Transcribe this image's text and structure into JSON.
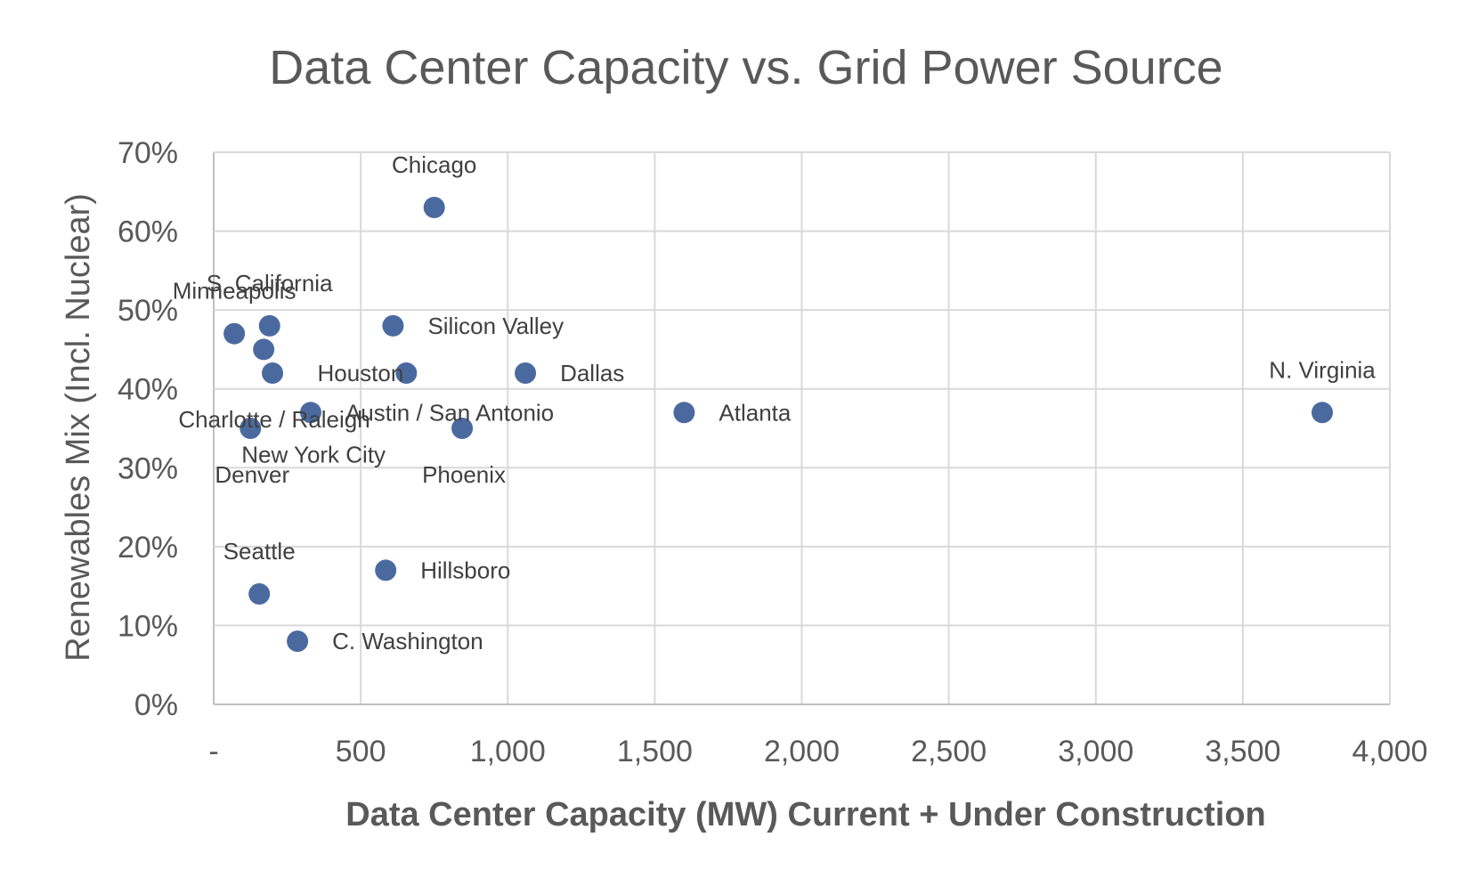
{
  "chart_data": {
    "type": "scatter",
    "title": "Data Center Capacity vs. Grid Power Source",
    "xlabel": "Data Center Capacity (MW) Current + Under Construction",
    "ylabel": "Renewables Mix (Incl. Nuclear)",
    "xlim": [
      0,
      4000
    ],
    "ylim": [
      0,
      0.7
    ],
    "x_ticks": [
      0,
      500,
      1000,
      1500,
      2000,
      2500,
      3000,
      3500,
      4000
    ],
    "x_tick_labels": [
      "-",
      "500",
      "1,000",
      "1,500",
      "2,000",
      "2,500",
      "3,000",
      "3,500",
      "4,000"
    ],
    "y_ticks": [
      0,
      0.1,
      0.2,
      0.3,
      0.4,
      0.5,
      0.6,
      0.7
    ],
    "y_tick_labels": [
      "0%",
      "10%",
      "20%",
      "30%",
      "40%",
      "50%",
      "60%",
      "70%"
    ],
    "grid": true,
    "marker_color": "#4a6a9f",
    "points": [
      {
        "label": "Chicago",
        "x": 750,
        "y": 0.63,
        "label_pos": "above"
      },
      {
        "label": "S. California",
        "x": 190,
        "y": 0.48,
        "label_pos": "above"
      },
      {
        "label": "Minneapolis",
        "x": 70,
        "y": 0.47,
        "label_pos": "above"
      },
      {
        "label": "Silicon Valley",
        "x": 610,
        "y": 0.48,
        "label_pos": "right"
      },
      {
        "label": "Houston",
        "x": 655,
        "y": 0.42,
        "label_pos": "left"
      },
      {
        "label": "Dallas",
        "x": 1060,
        "y": 0.42,
        "label_pos": "right"
      },
      {
        "label": "N. Virginia",
        "x": 3770,
        "y": 0.37,
        "label_pos": "above"
      },
      {
        "label": "Atlanta",
        "x": 1600,
        "y": 0.37,
        "label_pos": "right"
      },
      {
        "label": "Charlotte / Raleigh",
        "x": 200,
        "y": 0.42,
        "label_pos": "below"
      },
      {
        "label": "Austin / San Antonio",
        "x": 330,
        "y": 0.37,
        "label_pos": "right"
      },
      {
        "label": "Phoenix",
        "x": 845,
        "y": 0.35,
        "label_pos": "below"
      },
      {
        "label": "New York City",
        "x": 170,
        "y": 0.45,
        "label_pos": "custom"
      },
      {
        "label": "Denver",
        "x": 125,
        "y": 0.35,
        "label_pos": "below"
      },
      {
        "label": "Seattle",
        "x": 155,
        "y": 0.14,
        "label_pos": "above"
      },
      {
        "label": "Hillsboro",
        "x": 585,
        "y": 0.17,
        "label_pos": "right"
      },
      {
        "label": "C. Washington",
        "x": 285,
        "y": 0.08,
        "label_pos": "right"
      }
    ]
  }
}
